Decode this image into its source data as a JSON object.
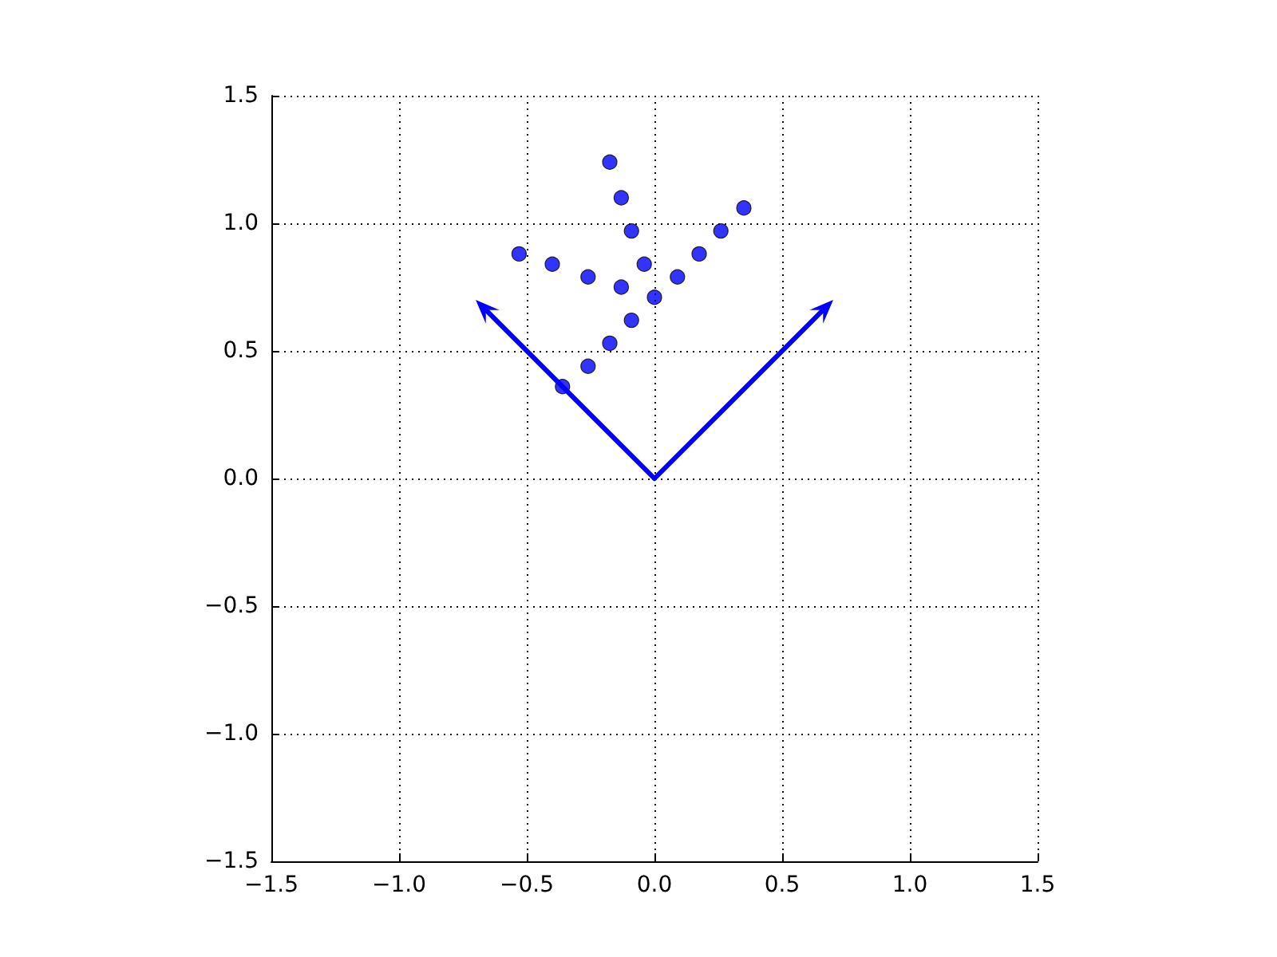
{
  "chart_data": {
    "type": "scatter",
    "xlim": [
      -1.5,
      1.5
    ],
    "ylim": [
      -1.5,
      1.5
    ],
    "xticks": [
      {
        "value": -1.5,
        "label": "−1.5"
      },
      {
        "value": -1.0,
        "label": "−1.0"
      },
      {
        "value": -0.5,
        "label": "−0.5"
      },
      {
        "value": 0,
        "label": "0.0"
      },
      {
        "value": 0.5,
        "label": "0.5"
      },
      {
        "value": 1.0,
        "label": "1.0"
      },
      {
        "value": 1.5,
        "label": "1.5"
      }
    ],
    "yticks": [
      {
        "value": -1.5,
        "label": "−1.5"
      },
      {
        "value": -1.0,
        "label": "−1.0"
      },
      {
        "value": -0.5,
        "label": "−0.5"
      },
      {
        "value": 0,
        "label": "0.0"
      },
      {
        "value": 0.5,
        "label": "0.5"
      },
      {
        "value": 1.0,
        "label": "1.0"
      },
      {
        "value": 1.5,
        "label": "1.5"
      }
    ],
    "grid": true,
    "marker": "circle",
    "series": [
      {
        "color": "#0000ff",
        "x": [
          -0.53,
          -0.4,
          -0.36,
          -0.26,
          -0.26,
          -0.175,
          -0.175,
          -0.13,
          -0.13,
          -0.09,
          -0.09,
          -0.04,
          0.0,
          0.09,
          0.175,
          0.26,
          0.35
        ],
        "values": [
          0.88,
          0.84,
          0.36,
          0.44,
          0.79,
          1.24,
          0.53,
          1.1,
          0.75,
          0.97,
          0.62,
          0.84,
          0.71,
          0.79,
          0.88,
          0.97,
          1.06
        ]
      }
    ]
  }
}
